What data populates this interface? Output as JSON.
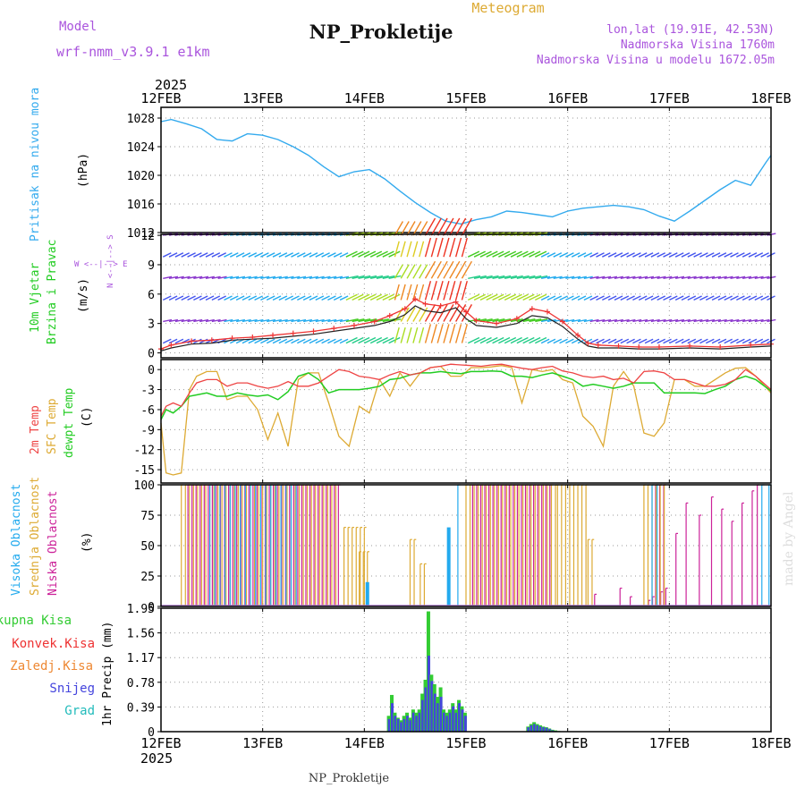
{
  "header": {
    "model_label": "Model",
    "model_name": "wrf-nmm_v3.9.1 e1km",
    "title": "NP_Prokletije",
    "subtitle": "Meteogram",
    "coords": "lon,lat (19.91E, 42.53N)",
    "elevation": "Nadmorska Visina 1760m",
    "model_elevation": "Nadmorska Visina u modelu 1672.05m",
    "footer_title": "NP_Prokletije",
    "watermark": "made by Angel"
  },
  "colors": {
    "pressure": "#33aaee",
    "temp2m": "#ee4444",
    "sfc_temp": "#ddaa33",
    "dewpt": "#22cc22",
    "high_cloud": "#22aaee",
    "mid_cloud": "#ddaa33",
    "low_cloud": "#cc2299",
    "total_precip": "#33cc33",
    "conv_precip": "#ee3333",
    "frozen_precip": "#ee8833",
    "snow": "#4444dd",
    "hail": "#22bbbb",
    "label_purple": "#aa55dd",
    "label_orange": "#ddaa33"
  },
  "chart_data": [
    {
      "type": "line",
      "name": "pressure",
      "ylabel": [
        "Pritisak na nivou mora",
        "(hPa)"
      ],
      "x_axis_top": {
        "year": "2025",
        "ticks": [
          "12FEB",
          "13FEB",
          "14FEB",
          "15FEB",
          "16FEB",
          "17FEB",
          "18FEB"
        ]
      },
      "ylim": [
        1012,
        1029.5
      ],
      "yticks": [
        "1012",
        "1016",
        "1020",
        "1024",
        "1028"
      ],
      "grid": true,
      "x_days": [
        0,
        0.1,
        0.25,
        0.4,
        0.55,
        0.7,
        0.85,
        1.0,
        1.15,
        1.3,
        1.45,
        1.6,
        1.75,
        1.9,
        2.05,
        2.2,
        2.35,
        2.5,
        2.65,
        2.8,
        2.95,
        3.1,
        3.25,
        3.4,
        3.55,
        3.7,
        3.85,
        4.0,
        4.15,
        4.3,
        4.45,
        4.6,
        4.75,
        4.9,
        5.05,
        5.2,
        5.35,
        5.5,
        5.65,
        5.8,
        5.95,
        6.0
      ],
      "series": [
        {
          "values": [
            1027.5,
            1027.8,
            1027.2,
            1026.5,
            1025.0,
            1024.8,
            1025.8,
            1025.6,
            1025.0,
            1024.0,
            1022.8,
            1021.2,
            1019.8,
            1020.5,
            1020.8,
            1019.5,
            1017.8,
            1016.2,
            1014.8,
            1013.6,
            1013.2,
            1013.8,
            1014.2,
            1015.0,
            1014.8,
            1014.5,
            1014.2,
            1015.0,
            1015.4,
            1015.6,
            1015.8,
            1015.6,
            1015.2,
            1014.3,
            1013.6,
            1015.0,
            1016.5,
            1018.0,
            1019.3,
            1018.6,
            1021.8,
            1022.8
          ]
        }
      ]
    },
    {
      "type": "line",
      "name": "wind",
      "ylabel": [
        "10m Vjetar",
        "Brzina i Pravac",
        "(m/s)"
      ],
      "direction_legend": [
        "W <--|--> E",
        "N <--|--> S"
      ],
      "ylim": [
        -0.5,
        12.1
      ],
      "yticks": [
        "0",
        "3",
        "6",
        "9",
        "12"
      ],
      "grid": true,
      "x_days": [
        0,
        0.1,
        0.3,
        0.5,
        0.7,
        0.9,
        1.1,
        1.3,
        1.5,
        1.7,
        1.9,
        2.1,
        2.25,
        2.4,
        2.5,
        2.6,
        2.75,
        2.9,
        3.0,
        3.1,
        3.3,
        3.5,
        3.65,
        3.8,
        3.95,
        4.1,
        4.2,
        4.3,
        4.5,
        4.7,
        4.9,
        5.2,
        5.5,
        5.8,
        6.0
      ],
      "series": [
        {
          "values": [
            0.4,
            0.8,
            1.2,
            1.3,
            1.5,
            1.6,
            1.8,
            2.0,
            2.2,
            2.5,
            2.8,
            3.2,
            3.8,
            4.5,
            5.5,
            5.0,
            4.8,
            5.2,
            4.2,
            3.3,
            3.0,
            3.5,
            4.5,
            4.2,
            3.2,
            1.8,
            1.0,
            0.8,
            0.7,
            0.6,
            0.6,
            0.7,
            0.6,
            0.8,
            0.9
          ]
        },
        {
          "values": [
            0.2,
            0.5,
            0.9,
            1.0,
            1.3,
            1.4,
            1.5,
            1.7,
            1.9,
            2.2,
            2.5,
            2.8,
            3.2,
            3.9,
            4.8,
            4.3,
            4.1,
            4.6,
            3.5,
            2.8,
            2.6,
            3.0,
            3.8,
            3.6,
            2.7,
            1.4,
            0.7,
            0.5,
            0.5,
            0.4,
            0.4,
            0.5,
            0.4,
            0.6,
            0.7
          ]
        }
      ]
    },
    {
      "type": "line",
      "name": "temperature",
      "ylabel": [
        "2m Temp",
        "SFC Temp",
        "dewpt Temp",
        "(C)"
      ],
      "ylim": [
        -17,
        1.5
      ],
      "yticks": [
        "0",
        "-3",
        "-6",
        "-9",
        "-12",
        "-15"
      ],
      "grid": true,
      "x_days": [
        0,
        0.05,
        0.12,
        0.2,
        0.28,
        0.35,
        0.45,
        0.55,
        0.65,
        0.75,
        0.85,
        0.95,
        1.05,
        1.15,
        1.25,
        1.35,
        1.45,
        1.55,
        1.65,
        1.75,
        1.85,
        1.95,
        2.05,
        2.15,
        2.25,
        2.35,
        2.45,
        2.55,
        2.65,
        2.75,
        2.85,
        2.95,
        3.05,
        3.15,
        3.25,
        3.35,
        3.45,
        3.55,
        3.65,
        3.75,
        3.85,
        3.95,
        4.05,
        4.15,
        4.25,
        4.35,
        4.45,
        4.55,
        4.65,
        4.75,
        4.85,
        4.95,
        5.05,
        5.15,
        5.25,
        5.35,
        5.45,
        5.55,
        5.65,
        5.75,
        5.85,
        6.0
      ],
      "series": [
        {
          "values": [
            -7,
            -5.5,
            -5,
            -5.5,
            -3.5,
            -2,
            -1.5,
            -1.5,
            -2.5,
            -2,
            -2,
            -2.5,
            -2.8,
            -2.5,
            -1.8,
            -2.5,
            -2.5,
            -2,
            -1,
            0,
            -0.3,
            -1,
            -1.2,
            -1.5,
            -0.8,
            -0.3,
            -0.8,
            -0.5,
            0.3,
            0.5,
            0.8,
            0.7,
            0.6,
            0.5,
            0.7,
            0.8,
            0.5,
            0.2,
            0,
            0.3,
            0.5,
            -0.2,
            -0.5,
            -1,
            -1.2,
            -1,
            -1.5,
            -1.3,
            -2,
            -0.3,
            -0.2,
            -0.5,
            -1.5,
            -1.5,
            -2,
            -2.5,
            -2.5,
            -2.2,
            -1.5,
            0,
            -1,
            -3
          ]
        },
        {
          "values": [
            -8,
            -15.5,
            -15.8,
            -15.5,
            -3,
            -1,
            -0.3,
            -0.3,
            -4.5,
            -4,
            -4,
            -6,
            -10.5,
            -6.5,
            -11.5,
            -1.5,
            -0.5,
            -0.5,
            -5,
            -10,
            -11.5,
            -5.5,
            -6.5,
            -1.5,
            -4,
            -0.5,
            -2.5,
            -0.5,
            0.3,
            0.5,
            -1,
            -1,
            0.3,
            0.3,
            0.4,
            0.6,
            0.3,
            -5,
            0,
            -0.3,
            0,
            -1.5,
            -2,
            -7,
            -8.5,
            -11.5,
            -2.5,
            -0.3,
            -2.5,
            -9.5,
            -10,
            -8,
            -1.5,
            -1.5,
            -2.5,
            -2.5,
            -1.5,
            -0.5,
            0.2,
            0.3,
            -1,
            -3.5
          ]
        },
        {
          "values": [
            -7.5,
            -6,
            -6.5,
            -5.5,
            -4,
            -3.8,
            -3.5,
            -4,
            -4,
            -3.5,
            -3.8,
            -4,
            -3.8,
            -4.5,
            -3.3,
            -1,
            -0.5,
            -1.5,
            -3.5,
            -3,
            -3,
            -3,
            -2.8,
            -2.5,
            -1.5,
            -1.3,
            -0.8,
            -0.5,
            -0.5,
            -0.3,
            -0.5,
            -0.6,
            -0.3,
            -0.3,
            -0.2,
            -0.3,
            -1,
            -1,
            -1.2,
            -0.8,
            -0.5,
            -1,
            -1.5,
            -2.5,
            -2.2,
            -2.5,
            -2.8,
            -2.5,
            -2,
            -2,
            -2,
            -3.5,
            -3.5,
            -3.5,
            -3.5,
            -3.6,
            -3,
            -2.5,
            -1.5,
            -1,
            -1.5,
            -3.2
          ]
        }
      ]
    },
    {
      "type": "bar",
      "name": "cloud_cover",
      "ylabel": [
        "Visoka Oblacnost",
        "Srednja Oblacnost",
        "Niska Oblacnost",
        "(%)"
      ],
      "ylim": [
        0,
        100
      ],
      "yticks": [
        "0",
        "25",
        "50",
        "75",
        "100"
      ],
      "grid": true,
      "segments_days": [
        {
          "layer": "mid",
          "from": 0.2,
          "to": 1.75,
          "value": 100
        },
        {
          "layer": "low",
          "from": 0.25,
          "to": 1.75,
          "value": 100
        },
        {
          "layer": "high",
          "from": 0.45,
          "to": 1.35,
          "value": 100
        },
        {
          "layer": "mid",
          "from": 1.8,
          "to": 2.0,
          "value": 65
        },
        {
          "layer": "mid",
          "from": 1.95,
          "to": 2.05,
          "value": 45
        },
        {
          "layer": "high",
          "from": 2.0,
          "to": 2.05,
          "value": 20
        },
        {
          "layer": "mid",
          "from": 2.45,
          "to": 2.5,
          "value": 55
        },
        {
          "layer": "mid",
          "from": 2.55,
          "to": 2.6,
          "value": 35
        },
        {
          "layer": "high",
          "from": 2.72,
          "to": 2.74,
          "value": 20
        },
        {
          "layer": "high",
          "from": 2.77,
          "to": 2.79,
          "value": 40
        },
        {
          "layer": "high",
          "from": 2.8,
          "to": 2.84,
          "value": 65
        },
        {
          "layer": "high",
          "from": 2.86,
          "to": 2.88,
          "value": 80
        },
        {
          "layer": "high",
          "from": 2.89,
          "to": 2.92,
          "value": 100
        },
        {
          "layer": "mid",
          "from": 3.0,
          "to": 3.9,
          "value": 100
        },
        {
          "layer": "low",
          "from": 3.05,
          "to": 3.85,
          "value": 100
        },
        {
          "layer": "mid",
          "from": 3.9,
          "to": 4.2,
          "value": 100
        },
        {
          "layer": "mid",
          "from": 4.2,
          "to": 4.25,
          "value": 55
        },
        {
          "layer": "low",
          "from": 4.25,
          "to": 4.3,
          "value": 10
        },
        {
          "layer": "low",
          "from": 4.5,
          "to": 4.55,
          "value": 15
        },
        {
          "layer": "low",
          "from": 4.6,
          "to": 4.65,
          "value": 8
        },
        {
          "layer": "low",
          "from": 4.78,
          "to": 4.8,
          "value": 5
        },
        {
          "layer": "low",
          "from": 4.82,
          "to": 4.84,
          "value": 8
        },
        {
          "layer": "low",
          "from": 4.9,
          "to": 4.92,
          "value": 12
        },
        {
          "layer": "low",
          "from": 4.95,
          "to": 4.98,
          "value": 15
        },
        {
          "layer": "mid",
          "from": 4.75,
          "to": 4.95,
          "value": 100
        },
        {
          "layer": "high",
          "from": 4.8,
          "to": 4.92,
          "value": 100
        },
        {
          "layer": "low",
          "from": 4.85,
          "to": 4.95,
          "value": 100
        },
        {
          "layer": "low",
          "from": 5.05,
          "to": 5.1,
          "value": 60
        },
        {
          "layer": "low",
          "from": 5.15,
          "to": 5.2,
          "value": 85
        },
        {
          "layer": "low",
          "from": 5.28,
          "to": 5.3,
          "value": 75
        },
        {
          "layer": "low",
          "from": 5.4,
          "to": 5.45,
          "value": 90
        },
        {
          "layer": "low",
          "from": 5.5,
          "to": 5.52,
          "value": 80
        },
        {
          "layer": "low",
          "from": 5.6,
          "to": 5.62,
          "value": 70
        },
        {
          "layer": "low",
          "from": 5.7,
          "to": 5.72,
          "value": 85
        },
        {
          "layer": "low",
          "from": 5.8,
          "to": 5.82,
          "value": 95
        },
        {
          "layer": "low",
          "from": 5.85,
          "to": 5.88,
          "value": 100
        },
        {
          "layer": "high",
          "from": 5.88,
          "to": 5.91,
          "value": 100
        },
        {
          "layer": "high",
          "from": 5.95,
          "to": 6.0,
          "value": 100
        }
      ]
    },
    {
      "type": "bar",
      "name": "precipitation",
      "ylabel": [
        "1hr Precip (mm)"
      ],
      "legend": [
        "Ukupna Kisa",
        "Konvek.Kisa",
        "Zaledj.Kisa",
        "Snijeg",
        "Grad"
      ],
      "ylim": [
        0,
        1.95
      ],
      "yticks": [
        "0",
        "0.39",
        "0.78",
        "1.17",
        "1.56",
        "1.95"
      ],
      "grid": true,
      "x_axis_bottom": {
        "year": "2025",
        "ticks": [
          "12FEB",
          "13FEB",
          "14FEB",
          "15FEB",
          "16FEB",
          "17FEB",
          "18FEB"
        ]
      },
      "x_days": [
        2.24,
        2.27,
        2.3,
        2.33,
        2.36,
        2.39,
        2.42,
        2.45,
        2.48,
        2.51,
        2.54,
        2.57,
        2.6,
        2.63,
        2.66,
        2.69,
        2.72,
        2.75,
        2.78,
        2.81,
        2.84,
        2.87,
        2.9,
        2.93,
        2.96,
        2.99,
        3.02,
        3.05,
        3.08,
        3.11,
        3.14,
        3.61,
        3.64,
        3.67,
        3.7,
        3.73,
        3.76,
        3.79,
        3.82,
        3.85,
        3.88,
        3.91
      ],
      "series": [
        {
          "name": "Ukupna Kisa",
          "values": [
            0.25,
            0.58,
            0.3,
            0.22,
            0.18,
            0.25,
            0.3,
            0.22,
            0.35,
            0.3,
            0.35,
            0.6,
            0.82,
            1.9,
            0.9,
            0.75,
            0.55,
            0.7,
            0.35,
            0.3,
            0.35,
            0.45,
            0.35,
            0.5,
            0.4,
            0.3,
            0.0,
            0.0,
            0.0,
            0.0,
            0.0,
            0.08,
            0.12,
            0.15,
            0.12,
            0.1,
            0.08,
            0.07,
            0.05,
            0.03,
            0.02,
            0.01
          ]
        },
        {
          "name": "Snijeg",
          "values": [
            0.2,
            0.45,
            0.25,
            0.2,
            0.15,
            0.2,
            0.25,
            0.18,
            0.3,
            0.25,
            0.3,
            0.5,
            0.7,
            1.2,
            0.8,
            0.6,
            0.45,
            0.55,
            0.3,
            0.25,
            0.3,
            0.4,
            0.3,
            0.45,
            0.35,
            0.25,
            0.0,
            0.0,
            0.0,
            0.0,
            0.0,
            0.07,
            0.1,
            0.12,
            0.1,
            0.08,
            0.07,
            0.06,
            0.04,
            0.02,
            0.01,
            0.0
          ]
        }
      ]
    }
  ]
}
